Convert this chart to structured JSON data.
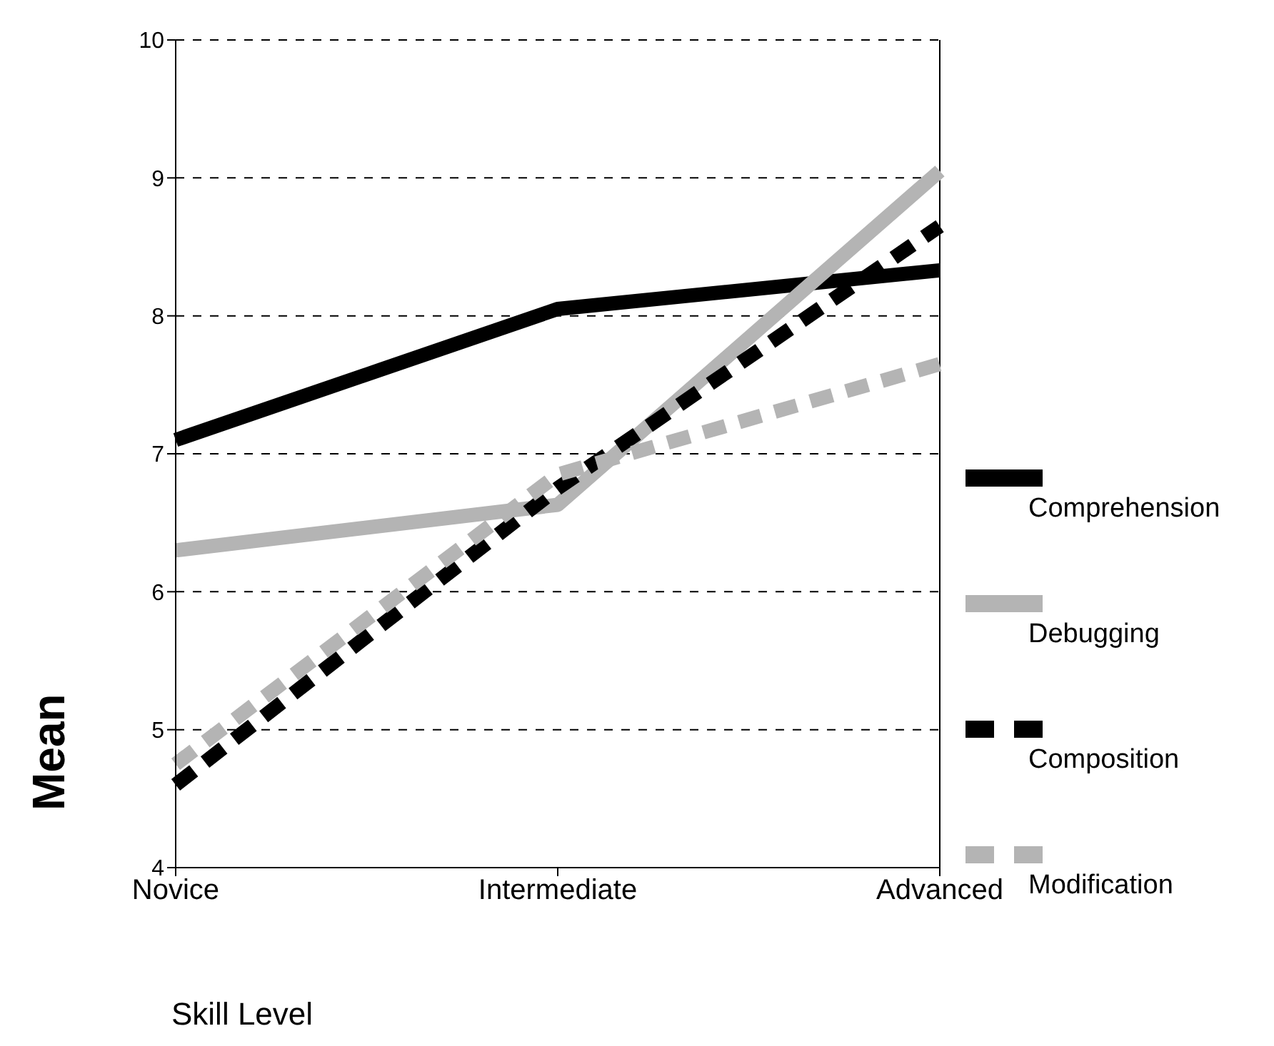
{
  "chart_data": {
    "type": "line",
    "xlabel": "Skill Level",
    "ylabel": "Mean",
    "categories": [
      "Novice",
      "Intermediate",
      "Advanced"
    ],
    "series": [
      {
        "name": "Comprehension",
        "color": "#000000",
        "line_style": "solid",
        "values": [
          7.1,
          8.05,
          8.33
        ]
      },
      {
        "name": "Debugging",
        "color": "#b4b4b4",
        "line_style": "solid",
        "values": [
          6.3,
          6.63,
          9.05
        ]
      },
      {
        "name": "Composition",
        "color": "#000000",
        "line_style": "dashed",
        "values": [
          4.6,
          6.75,
          8.65
        ]
      },
      {
        "name": "Modification",
        "color": "#b4b4b4",
        "line_style": "dashed",
        "values": [
          4.75,
          6.85,
          7.65
        ]
      }
    ],
    "ylim": [
      4,
      10
    ],
    "yticks": [
      4,
      5,
      6,
      7,
      8,
      9,
      10
    ],
    "grid": "y",
    "legend": "right",
    "marker": "none"
  }
}
